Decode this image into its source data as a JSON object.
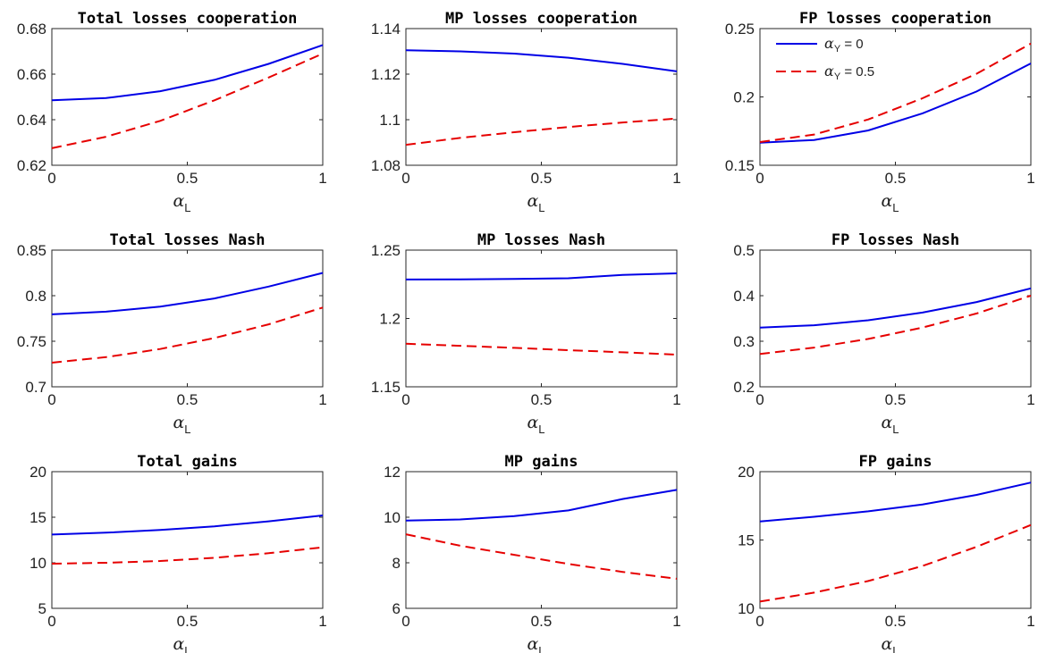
{
  "chart_data": [
    {
      "type": "line",
      "title": "Total losses cooperation",
      "xlabel": {
        "symbol": "α",
        "sub": "L"
      },
      "x": [
        0,
        0.2,
        0.4,
        0.6,
        0.8,
        1
      ],
      "xlim": [
        0,
        1
      ],
      "xticks": [
        "0",
        "0.5",
        "1"
      ],
      "ylim": [
        0.62,
        0.68
      ],
      "yticks": [
        "0.62",
        "0.64",
        "0.66",
        "0.68"
      ],
      "series": [
        {
          "key": "a0",
          "values": [
            0.6485,
            0.6495,
            0.6525,
            0.6575,
            0.6645,
            0.6728
          ]
        },
        {
          "key": "a05",
          "values": [
            0.6275,
            0.6325,
            0.6395,
            0.6485,
            0.6585,
            0.669
          ]
        }
      ]
    },
    {
      "type": "line",
      "title": "MP losses cooperation",
      "xlabel": {
        "symbol": "α",
        "sub": "L"
      },
      "x": [
        0,
        0.2,
        0.4,
        0.6,
        0.8,
        1
      ],
      "xlim": [
        0,
        1
      ],
      "xticks": [
        "0",
        "0.5",
        "1"
      ],
      "ylim": [
        1.08,
        1.14
      ],
      "yticks": [
        "1.08",
        "1.1",
        "1.12",
        "1.14"
      ],
      "series": [
        {
          "key": "a0",
          "values": [
            1.1305,
            1.13,
            1.129,
            1.1272,
            1.1245,
            1.1212
          ]
        },
        {
          "key": "a05",
          "values": [
            1.089,
            1.092,
            1.0945,
            1.0968,
            1.0988,
            1.1005
          ]
        }
      ]
    },
    {
      "type": "line",
      "title": "FP losses cooperation",
      "xlabel": {
        "symbol": "α",
        "sub": "L"
      },
      "x": [
        0,
        0.2,
        0.4,
        0.6,
        0.8,
        1
      ],
      "xlim": [
        0,
        1
      ],
      "xticks": [
        "0",
        "0.5",
        "1"
      ],
      "ylim": [
        0.15,
        0.25
      ],
      "yticks": [
        "0.15",
        "0.2",
        "0.25"
      ],
      "series": [
        {
          "key": "a0",
          "values": [
            0.1665,
            0.1685,
            0.1755,
            0.188,
            0.204,
            0.2245
          ]
        },
        {
          "key": "a05",
          "values": [
            0.167,
            0.1725,
            0.1835,
            0.199,
            0.217,
            0.239
          ]
        }
      ],
      "legend": {
        "placement": "top-left",
        "entries": [
          {
            "key": "a0",
            "symbol": "α",
            "sub": "Y",
            "value": " = 0"
          },
          {
            "key": "a05",
            "symbol": "α",
            "sub": "Y",
            "value": " = 0.5"
          }
        ]
      }
    },
    {
      "type": "line",
      "title": "Total losses Nash",
      "xlabel": {
        "symbol": "α",
        "sub": "L"
      },
      "x": [
        0,
        0.2,
        0.4,
        0.6,
        0.8,
        1
      ],
      "xlim": [
        0,
        1
      ],
      "xticks": [
        "0",
        "0.5",
        "1"
      ],
      "ylim": [
        0.7,
        0.85
      ],
      "yticks": [
        "0.7",
        "0.75",
        "0.8",
        "0.85"
      ],
      "series": [
        {
          "key": "a0",
          "values": [
            0.7795,
            0.7825,
            0.788,
            0.797,
            0.81,
            0.825
          ]
        },
        {
          "key": "a05",
          "values": [
            0.7265,
            0.7325,
            0.7415,
            0.7535,
            0.7685,
            0.787
          ]
        }
      ]
    },
    {
      "type": "line",
      "title": "MP losses Nash",
      "xlabel": {
        "symbol": "α",
        "sub": "L"
      },
      "x": [
        0,
        0.2,
        0.4,
        0.6,
        0.8,
        1
      ],
      "xlim": [
        0,
        1
      ],
      "xticks": [
        "0",
        "0.5",
        "1"
      ],
      "ylim": [
        1.15,
        1.25
      ],
      "yticks": [
        "1.15",
        "1.2",
        "1.25"
      ],
      "series": [
        {
          "key": "a0",
          "values": [
            1.2285,
            1.2286,
            1.2289,
            1.2294,
            1.2318,
            1.233
          ]
        },
        {
          "key": "a05",
          "values": [
            1.1815,
            1.18,
            1.1785,
            1.1768,
            1.1752,
            1.1735
          ]
        }
      ]
    },
    {
      "type": "line",
      "title": "FP losses Nash",
      "xlabel": {
        "symbol": "α",
        "sub": "L"
      },
      "x": [
        0,
        0.2,
        0.4,
        0.6,
        0.8,
        1
      ],
      "xlim": [
        0,
        1
      ],
      "xticks": [
        "0",
        "0.5",
        "1"
      ],
      "ylim": [
        0.2,
        0.5
      ],
      "yticks": [
        "0.2",
        "0.3",
        "0.4",
        "0.5"
      ],
      "series": [
        {
          "key": "a0",
          "values": [
            0.33,
            0.335,
            0.346,
            0.363,
            0.386,
            0.416
          ]
        },
        {
          "key": "a05",
          "values": [
            0.272,
            0.286,
            0.305,
            0.33,
            0.361,
            0.4
          ]
        }
      ]
    },
    {
      "type": "line",
      "title": "Total gains",
      "xlabel": {
        "symbol": "α",
        "sub": "L"
      },
      "x": [
        0,
        0.2,
        0.4,
        0.6,
        0.8,
        1
      ],
      "xlim": [
        0,
        1
      ],
      "xticks": [
        "0",
        "0.5",
        "1"
      ],
      "ylim": [
        5,
        20
      ],
      "yticks": [
        "5",
        "10",
        "15",
        "20"
      ],
      "series": [
        {
          "key": "a0",
          "values": [
            13.1,
            13.3,
            13.6,
            14.0,
            14.55,
            15.2
          ]
        },
        {
          "key": "a05",
          "values": [
            9.9,
            10.0,
            10.2,
            10.55,
            11.05,
            11.7
          ]
        }
      ]
    },
    {
      "type": "line",
      "title": "MP gains",
      "xlabel": {
        "symbol": "α",
        "sub": "L"
      },
      "x": [
        0,
        0.2,
        0.4,
        0.6,
        0.8,
        1
      ],
      "xlim": [
        0,
        1
      ],
      "xticks": [
        "0",
        "0.5",
        "1"
      ],
      "ylim": [
        6,
        12
      ],
      "yticks": [
        "6",
        "8",
        "10",
        "12"
      ],
      "series": [
        {
          "key": "a0",
          "values": [
            9.85,
            9.9,
            10.05,
            10.3,
            10.8,
            11.2
          ]
        },
        {
          "key": "a05",
          "values": [
            9.25,
            8.75,
            8.35,
            7.95,
            7.6,
            7.3
          ]
        }
      ]
    },
    {
      "type": "line",
      "title": "FP gains",
      "xlabel": {
        "symbol": "α",
        "sub": "L"
      },
      "x": [
        0,
        0.2,
        0.4,
        0.6,
        0.8,
        1
      ],
      "xlim": [
        0,
        1
      ],
      "xticks": [
        "0",
        "0.5",
        "1"
      ],
      "ylim": [
        10,
        20
      ],
      "yticks": [
        "10",
        "15",
        "20"
      ],
      "series": [
        {
          "key": "a0",
          "values": [
            16.35,
            16.7,
            17.1,
            17.6,
            18.3,
            19.2
          ]
        },
        {
          "key": "a05",
          "values": [
            10.5,
            11.15,
            12.0,
            13.1,
            14.5,
            16.1
          ]
        }
      ]
    }
  ],
  "colors": {
    "a0": "#0000e6",
    "a05": "#e60000",
    "axis": "#262626"
  },
  "line_styles": {
    "a0": "solid",
    "a05": "dashed"
  }
}
